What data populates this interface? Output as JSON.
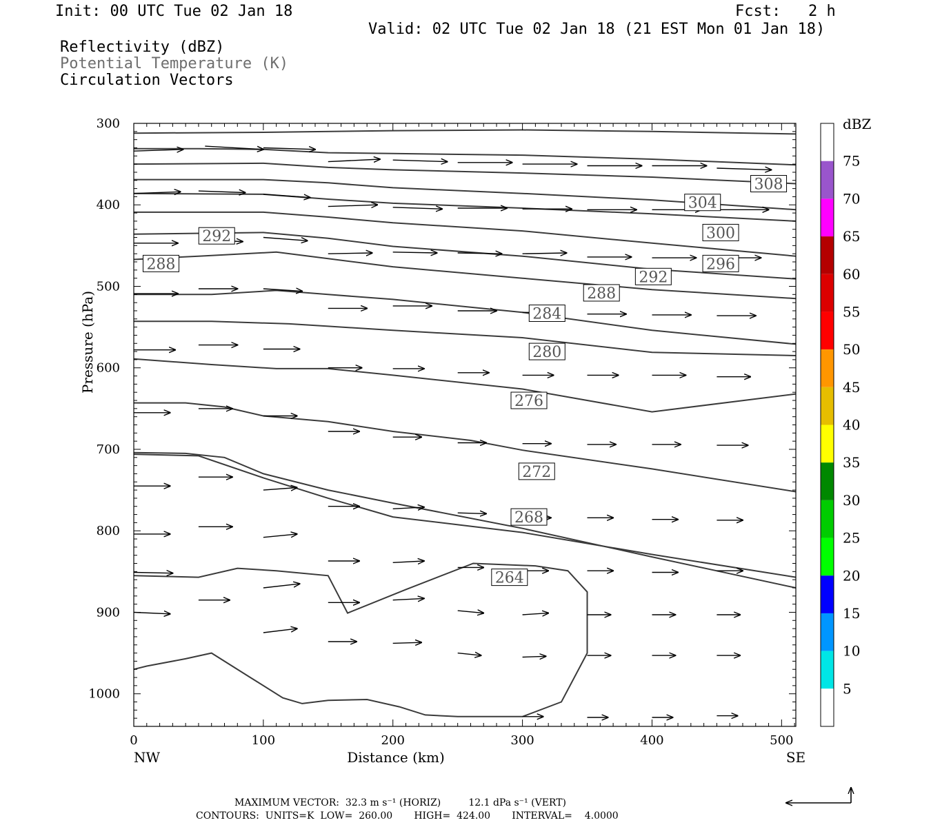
{
  "header": {
    "init": "Init: 00 UTC Tue 02 Jan 18",
    "fcst": "Fcst:   2 h",
    "valid": "Valid: 02 UTC Tue 02 Jan 18 (21 EST Mon 01 Jan 18)",
    "fields": [
      "Reflectivity (dBZ)",
      "Potential Temperature (K)",
      "Circulation Vectors"
    ]
  },
  "footer": {
    "max_vector": "MAXIMUM VECTOR:  32.3 m s⁻¹ (HORIZ)         12.1 dPa s⁻¹ (VERT)",
    "contours": "CONTOURS:  UNITS=K  LOW=  260.00       HIGH=  424.00       INTERVAL=    4.0000"
  },
  "colors": {
    "contour": "#3a3a3a",
    "axis": "#000000",
    "label_text": "#555555"
  },
  "chart_data": {
    "type": "cross-section",
    "xlabel": "Distance (km)",
    "ylabel": "Pressure (hPa)",
    "x_ticks": [
      0,
      100,
      200,
      300,
      400,
      500
    ],
    "y_ticks": [
      300,
      400,
      500,
      600,
      700,
      800,
      900,
      1000
    ],
    "x_end_labels": {
      "left": "NW",
      "right": "SE"
    },
    "xlim": [
      0,
      511
    ],
    "ylim": [
      300,
      1040
    ],
    "y_inverted": true,
    "colorbar": {
      "title": "dBZ",
      "labels": [
        5,
        10,
        15,
        20,
        25,
        30,
        35,
        40,
        45,
        50,
        55,
        60,
        65,
        70,
        75
      ],
      "colors": [
        "#00e6e6",
        "#0096ff",
        "#0000ff",
        "#00ff00",
        "#00cc00",
        "#008800",
        "#ffff00",
        "#e6be00",
        "#ff9600",
        "#ff0000",
        "#dc0000",
        "#b40000",
        "#ff00ff",
        "#9955cc"
      ]
    },
    "contour_labels": [
      {
        "text": "308",
        "x": 490,
        "p": 374
      },
      {
        "text": "304",
        "x": 439,
        "p": 397
      },
      {
        "text": "300",
        "x": 453,
        "p": 434
      },
      {
        "text": "296",
        "x": 453,
        "p": 472
      },
      {
        "text": "292",
        "x": 64,
        "p": 438
      },
      {
        "text": "292",
        "x": 401,
        "p": 488
      },
      {
        "text": "288",
        "x": 21,
        "p": 472
      },
      {
        "text": "288",
        "x": 361,
        "p": 508
      },
      {
        "text": "284",
        "x": 319,
        "p": 533
      },
      {
        "text": "280",
        "x": 319,
        "p": 580
      },
      {
        "text": "276",
        "x": 305,
        "p": 640
      },
      {
        "text": "272",
        "x": 311,
        "p": 727
      },
      {
        "text": "268",
        "x": 305,
        "p": 783
      },
      {
        "text": "264",
        "x": 290,
        "p": 857
      }
    ],
    "contours": [
      {
        "points": [
          [
            0,
            312
          ],
          [
            100,
            311
          ],
          [
            200,
            309
          ],
          [
            300,
            308
          ],
          [
            400,
            310
          ],
          [
            511,
            313
          ]
        ]
      },
      {
        "points": [
          [
            0,
            331
          ],
          [
            50,
            331
          ],
          [
            100,
            332
          ],
          [
            150,
            336
          ],
          [
            200,
            337
          ],
          [
            300,
            339
          ],
          [
            400,
            344
          ],
          [
            511,
            351
          ]
        ]
      },
      {
        "points": [
          [
            0,
            350
          ],
          [
            100,
            349
          ],
          [
            150,
            354
          ],
          [
            200,
            357
          ],
          [
            300,
            361
          ],
          [
            400,
            366
          ],
          [
            511,
            374
          ]
        ]
      },
      {
        "points": [
          [
            0,
            369
          ],
          [
            100,
            369
          ],
          [
            150,
            373
          ],
          [
            200,
            379
          ],
          [
            300,
            386
          ],
          [
            400,
            394
          ],
          [
            511,
            406
          ]
        ]
      },
      {
        "points": [
          [
            0,
            386
          ],
          [
            100,
            387
          ],
          [
            150,
            393
          ],
          [
            200,
            398
          ],
          [
            300,
            404
          ],
          [
            400,
            411
          ],
          [
            511,
            420
          ]
        ]
      },
      {
        "points": [
          [
            0,
            409
          ],
          [
            100,
            409
          ],
          [
            150,
            415
          ],
          [
            200,
            422
          ],
          [
            300,
            432
          ],
          [
            400,
            447
          ],
          [
            511,
            463
          ]
        ]
      },
      {
        "points": [
          [
            0,
            436
          ],
          [
            100,
            434
          ],
          [
            150,
            441
          ],
          [
            200,
            451
          ],
          [
            300,
            463
          ],
          [
            400,
            479
          ],
          [
            511,
            491
          ]
        ]
      },
      {
        "points": [
          [
            0,
            467
          ],
          [
            50,
            463
          ],
          [
            110,
            458
          ],
          [
            150,
            466
          ],
          [
            200,
            476
          ],
          [
            300,
            490
          ],
          [
            400,
            504
          ],
          [
            511,
            515
          ]
        ]
      },
      {
        "points": [
          [
            0,
            510
          ],
          [
            60,
            510
          ],
          [
            110,
            505
          ],
          [
            150,
            510
          ],
          [
            200,
            516
          ],
          [
            300,
            532
          ],
          [
            400,
            554
          ],
          [
            511,
            571
          ]
        ]
      },
      {
        "points": [
          [
            0,
            543
          ],
          [
            60,
            543
          ],
          [
            120,
            546
          ],
          [
            150,
            549
          ],
          [
            200,
            554
          ],
          [
            300,
            563
          ],
          [
            400,
            581
          ],
          [
            511,
            585
          ]
        ]
      },
      {
        "points": [
          [
            0,
            589
          ],
          [
            60,
            596
          ],
          [
            110,
            601
          ],
          [
            150,
            601
          ],
          [
            200,
            609
          ],
          [
            300,
            626
          ],
          [
            400,
            654
          ],
          [
            511,
            632
          ]
        ]
      },
      {
        "points": [
          [
            0,
            643
          ],
          [
            40,
            643
          ],
          [
            70,
            648
          ],
          [
            100,
            659
          ],
          [
            150,
            666
          ],
          [
            200,
            678
          ],
          [
            260,
            689
          ],
          [
            300,
            701
          ],
          [
            400,
            724
          ],
          [
            511,
            752
          ]
        ]
      },
      {
        "points": [
          [
            0,
            704
          ],
          [
            40,
            705
          ],
          [
            70,
            710
          ],
          [
            100,
            730
          ],
          [
            150,
            750
          ],
          [
            200,
            766
          ],
          [
            300,
            797
          ],
          [
            400,
            832
          ],
          [
            511,
            870
          ]
        ]
      },
      {
        "points": [
          [
            0,
            706
          ],
          [
            50,
            708
          ],
          [
            100,
            735
          ],
          [
            150,
            760
          ],
          [
            200,
            783
          ],
          [
            300,
            802
          ],
          [
            400,
            829
          ],
          [
            511,
            857
          ]
        ]
      }
    ],
    "closed_contour_264": [
      [
        0,
        855
      ],
      [
        50,
        857
      ],
      [
        80,
        846
      ],
      [
        110,
        849
      ],
      [
        150,
        855
      ],
      [
        165,
        901
      ],
      [
        210,
        872
      ],
      [
        262,
        840
      ],
      [
        310,
        843
      ],
      [
        335,
        849
      ],
      [
        350,
        875
      ],
      [
        350,
        950
      ],
      [
        330,
        1010
      ],
      [
        300,
        1028
      ],
      [
        250,
        1028
      ],
      [
        225,
        1026
      ],
      [
        205,
        1016
      ],
      [
        180,
        1007
      ],
      [
        150,
        1008
      ],
      [
        130,
        1012
      ],
      [
        115,
        1005
      ],
      [
        90,
        980
      ],
      [
        60,
        950
      ],
      [
        40,
        957
      ],
      [
        10,
        966
      ],
      [
        0,
        970
      ]
    ],
    "vectors": [
      {
        "x": 0,
        "p": 334,
        "u": 38,
        "w": -2
      },
      {
        "x": 55,
        "p": 328,
        "u": 45,
        "w": 4
      },
      {
        "x": 100,
        "p": 330,
        "u": 40,
        "w": 2
      },
      {
        "x": 150,
        "p": 347,
        "u": 40,
        "w": -3
      },
      {
        "x": 200,
        "p": 345,
        "u": 42,
        "w": 2
      },
      {
        "x": 250,
        "p": 348,
        "u": 42,
        "w": 0
      },
      {
        "x": 300,
        "p": 350,
        "u": 42,
        "w": 0
      },
      {
        "x": 350,
        "p": 352,
        "u": 42,
        "w": 0
      },
      {
        "x": 400,
        "p": 352,
        "u": 42,
        "w": 0
      },
      {
        "x": 450,
        "p": 355,
        "u": 42,
        "w": 2
      },
      {
        "x": 0,
        "p": 386,
        "u": 36,
        "w": -2
      },
      {
        "x": 50,
        "p": 383,
        "u": 36,
        "w": 2
      },
      {
        "x": 100,
        "p": 387,
        "u": 36,
        "w": 4
      },
      {
        "x": 150,
        "p": 402,
        "u": 38,
        "w": -2
      },
      {
        "x": 200,
        "p": 403,
        "u": 38,
        "w": 2
      },
      {
        "x": 250,
        "p": 404,
        "u": 38,
        "w": 0
      },
      {
        "x": 300,
        "p": 405,
        "u": 38,
        "w": 0
      },
      {
        "x": 350,
        "p": 406,
        "u": 38,
        "w": 0
      },
      {
        "x": 400,
        "p": 406,
        "u": 38,
        "w": 0
      },
      {
        "x": 450,
        "p": 406,
        "u": 40,
        "w": 0
      },
      {
        "x": 0,
        "p": 447,
        "u": 34,
        "w": 0
      },
      {
        "x": 50,
        "p": 443,
        "u": 34,
        "w": 2
      },
      {
        "x": 100,
        "p": 440,
        "u": 34,
        "w": 4
      },
      {
        "x": 150,
        "p": 460,
        "u": 34,
        "w": -1
      },
      {
        "x": 200,
        "p": 458,
        "u": 34,
        "w": 1
      },
      {
        "x": 250,
        "p": 459,
        "u": 34,
        "w": 1
      },
      {
        "x": 300,
        "p": 460,
        "u": 34,
        "w": -1
      },
      {
        "x": 350,
        "p": 464,
        "u": 34,
        "w": 0
      },
      {
        "x": 400,
        "p": 465,
        "u": 34,
        "w": 0
      },
      {
        "x": 450,
        "p": 465,
        "u": 34,
        "w": 0
      },
      {
        "x": 0,
        "p": 509,
        "u": 34,
        "w": 0
      },
      {
        "x": 50,
        "p": 503,
        "u": 30,
        "w": 0
      },
      {
        "x": 100,
        "p": 503,
        "u": 30,
        "w": 3
      },
      {
        "x": 150,
        "p": 527,
        "u": 30,
        "w": 0
      },
      {
        "x": 200,
        "p": 524,
        "u": 30,
        "w": 0
      },
      {
        "x": 250,
        "p": 530,
        "u": 30,
        "w": 0
      },
      {
        "x": 300,
        "p": 532,
        "u": 30,
        "w": 0
      },
      {
        "x": 350,
        "p": 534,
        "u": 30,
        "w": 0
      },
      {
        "x": 400,
        "p": 535,
        "u": 30,
        "w": 0
      },
      {
        "x": 450,
        "p": 536,
        "u": 30,
        "w": 0
      },
      {
        "x": 0,
        "p": 578,
        "u": 32,
        "w": 0
      },
      {
        "x": 50,
        "p": 572,
        "u": 30,
        "w": 0
      },
      {
        "x": 100,
        "p": 577,
        "u": 28,
        "w": 0
      },
      {
        "x": 150,
        "p": 600,
        "u": 26,
        "w": 0
      },
      {
        "x": 200,
        "p": 601,
        "u": 24,
        "w": 0
      },
      {
        "x": 250,
        "p": 606,
        "u": 24,
        "w": 0
      },
      {
        "x": 300,
        "p": 609,
        "u": 24,
        "w": 0
      },
      {
        "x": 350,
        "p": 609,
        "u": 24,
        "w": 0
      },
      {
        "x": 400,
        "p": 609,
        "u": 26,
        "w": 0
      },
      {
        "x": 450,
        "p": 611,
        "u": 26,
        "w": 0
      },
      {
        "x": 0,
        "p": 655,
        "u": 28,
        "w": 0
      },
      {
        "x": 50,
        "p": 650,
        "u": 26,
        "w": 0
      },
      {
        "x": 100,
        "p": 659,
        "u": 26,
        "w": 0
      },
      {
        "x": 150,
        "p": 678,
        "u": 24,
        "w": 0
      },
      {
        "x": 200,
        "p": 685,
        "u": 22,
        "w": 0
      },
      {
        "x": 250,
        "p": 692,
        "u": 22,
        "w": 0
      },
      {
        "x": 300,
        "p": 693,
        "u": 22,
        "w": 0
      },
      {
        "x": 350,
        "p": 694,
        "u": 22,
        "w": 0
      },
      {
        "x": 400,
        "p": 694,
        "u": 22,
        "w": 0
      },
      {
        "x": 450,
        "p": 695,
        "u": 24,
        "w": 0
      },
      {
        "x": 0,
        "p": 745,
        "u": 28,
        "w": 0
      },
      {
        "x": 50,
        "p": 734,
        "u": 26,
        "w": 0
      },
      {
        "x": 100,
        "p": 750,
        "u": 26,
        "w": -3
      },
      {
        "x": 150,
        "p": 770,
        "u": 24,
        "w": 0
      },
      {
        "x": 200,
        "p": 773,
        "u": 24,
        "w": -2
      },
      {
        "x": 250,
        "p": 778,
        "u": 22,
        "w": 1
      },
      {
        "x": 300,
        "p": 784,
        "u": 22,
        "w": 0
      },
      {
        "x": 350,
        "p": 784,
        "u": 20,
        "w": 0
      },
      {
        "x": 400,
        "p": 786,
        "u": 20,
        "w": 0
      },
      {
        "x": 450,
        "p": 787,
        "u": 20,
        "w": 0
      },
      {
        "x": 0,
        "p": 804,
        "u": 28,
        "w": 0
      },
      {
        "x": 50,
        "p": 795,
        "u": 26,
        "w": 0
      },
      {
        "x": 100,
        "p": 808,
        "u": 26,
        "w": -4
      },
      {
        "x": 150,
        "p": 837,
        "u": 24,
        "w": 0
      },
      {
        "x": 200,
        "p": 839,
        "u": 24,
        "w": -2
      },
      {
        "x": 250,
        "p": 845,
        "u": 20,
        "w": 0
      },
      {
        "x": 300,
        "p": 849,
        "u": 20,
        "w": 0
      },
      {
        "x": 350,
        "p": 849,
        "u": 20,
        "w": 0
      },
      {
        "x": 400,
        "p": 851,
        "u": 20,
        "w": 0
      },
      {
        "x": 450,
        "p": 849,
        "u": 20,
        "w": 0
      },
      {
        "x": 0,
        "p": 851,
        "u": 30,
        "w": 1
      },
      {
        "x": 50,
        "p": 885,
        "u": 24,
        "w": 0
      },
      {
        "x": 100,
        "p": 870,
        "u": 28,
        "w": -5
      },
      {
        "x": 150,
        "p": 888,
        "u": 24,
        "w": 0
      },
      {
        "x": 200,
        "p": 885,
        "u": 24,
        "w": -2
      },
      {
        "x": 250,
        "p": 898,
        "u": 20,
        "w": 3
      },
      {
        "x": 300,
        "p": 903,
        "u": 20,
        "w": -2
      },
      {
        "x": 350,
        "p": 903,
        "u": 18,
        "w": 0
      },
      {
        "x": 400,
        "p": 903,
        "u": 18,
        "w": 0
      },
      {
        "x": 450,
        "p": 903,
        "u": 18,
        "w": 0
      },
      {
        "x": 0,
        "p": 900,
        "u": 28,
        "w": 2
      },
      {
        "x": 100,
        "p": 925,
        "u": 26,
        "w": -5
      },
      {
        "x": 150,
        "p": 936,
        "u": 22,
        "w": 0
      },
      {
        "x": 200,
        "p": 938,
        "u": 22,
        "w": -1
      },
      {
        "x": 250,
        "p": 950,
        "u": 18,
        "w": 3
      },
      {
        "x": 300,
        "p": 955,
        "u": 18,
        "w": -1
      },
      {
        "x": 350,
        "p": 953,
        "u": 18,
        "w": 0
      },
      {
        "x": 400,
        "p": 953,
        "u": 18,
        "w": 0
      },
      {
        "x": 450,
        "p": 953,
        "u": 18,
        "w": 0
      },
      {
        "x": 300,
        "p": 1028,
        "u": 16,
        "w": 0
      },
      {
        "x": 350,
        "p": 1029,
        "u": 16,
        "w": 0
      },
      {
        "x": 400,
        "p": 1029,
        "u": 16,
        "w": 0
      },
      {
        "x": 450,
        "p": 1027,
        "u": 16,
        "w": 0
      }
    ]
  }
}
